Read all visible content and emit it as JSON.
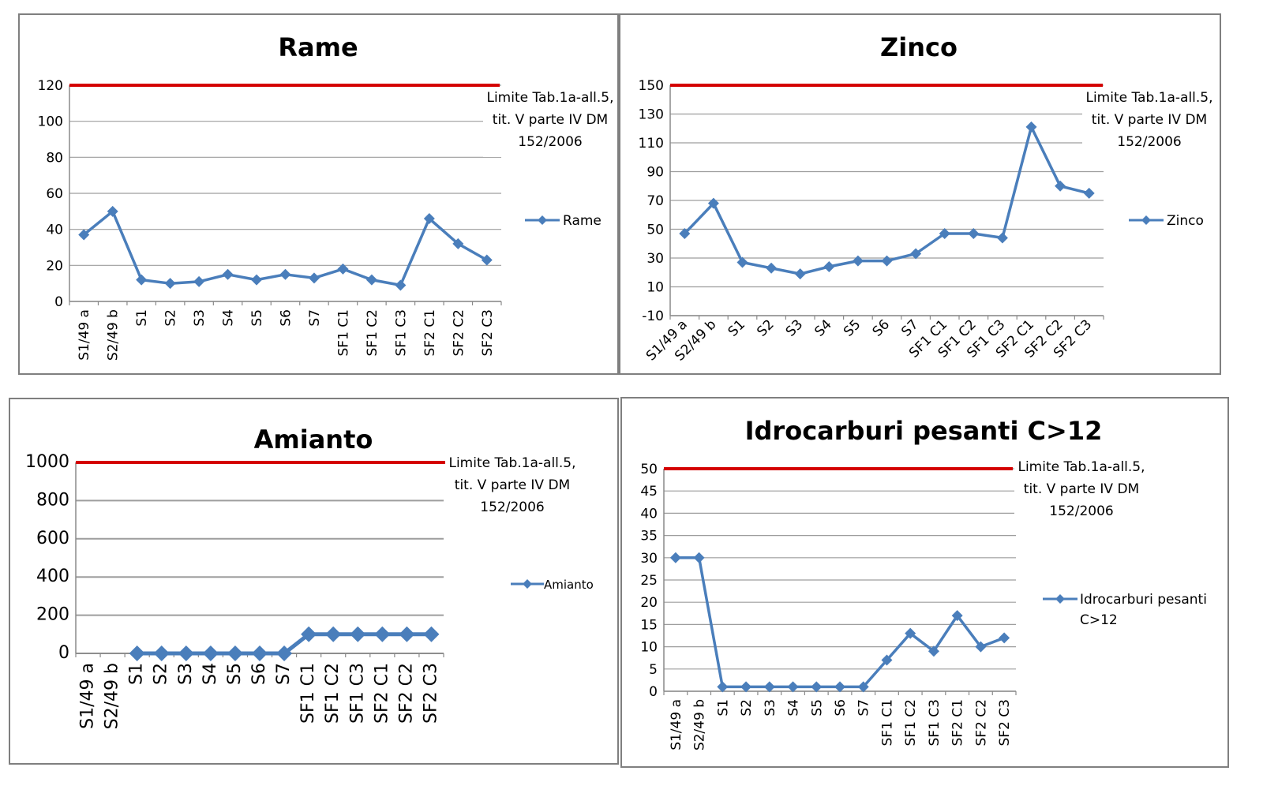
{
  "colors": {
    "series": "#4a7ebb",
    "limit": "#d40000",
    "grid": "#9d9d9d",
    "axis": "#8a8a8a"
  },
  "chart_data": [
    {
      "type": "line",
      "title": "Rame",
      "categories": [
        "S1/49 a",
        "S2/49 b",
        "S1",
        "S2",
        "S3",
        "S4",
        "S5",
        "S6",
        "S7",
        "SF1 C1",
        "SF1 C2",
        "SF1 C3",
        "SF2 C1",
        "SF2 C2",
        "SF2 C3"
      ],
      "series": [
        {
          "name": "Rame",
          "values": [
            37,
            50,
            12,
            10,
            11,
            15,
            12,
            15,
            13,
            18,
            12,
            9,
            46,
            32,
            23
          ]
        }
      ],
      "limit": {
        "value": 120,
        "label_lines": [
          "Limite Tab.1a-all.5,",
          "tit. V parte IV DM",
          "152/2006"
        ]
      },
      "ylim": [
        0,
        120
      ],
      "yticks": [
        0,
        20,
        40,
        60,
        80,
        100,
        120
      ],
      "grid": true,
      "legend": "right",
      "xlabel_rotation": "vertical"
    },
    {
      "type": "line",
      "title": "Zinco",
      "categories": [
        "S1/49 a",
        "S2/49 b",
        "S1",
        "S2",
        "S3",
        "S4",
        "S5",
        "S6",
        "S7",
        "SF1 C1",
        "SF1 C2",
        "SF1 C3",
        "SF2 C1",
        "SF2 C2",
        "SF2 C3"
      ],
      "series": [
        {
          "name": "Zinco",
          "values": [
            47,
            68,
            27,
            23,
            19,
            24,
            28,
            28,
            33,
            47,
            47,
            44,
            121,
            80,
            75
          ]
        }
      ],
      "limit": {
        "value": 150,
        "label_lines": [
          "Limite Tab.1a-all.5,",
          "tit. V parte IV DM",
          "152/2006"
        ]
      },
      "ylim": [
        -10,
        150
      ],
      "yticks": [
        -10,
        10,
        30,
        50,
        70,
        90,
        110,
        130,
        150
      ],
      "grid": true,
      "legend": "right",
      "xlabel_rotation": "diagonal"
    },
    {
      "type": "line",
      "title": "Amianto",
      "categories": [
        "S1/49 a",
        "S2/49 b",
        "S1",
        "S2",
        "S3",
        "S4",
        "S5",
        "S6",
        "S7",
        "SF1 C1",
        "SF1 C2",
        "SF1 C3",
        "SF2 C1",
        "SF2 C2",
        "SF2 C3"
      ],
      "series": [
        {
          "name": "Amianto",
          "values": [
            null,
            null,
            0,
            0,
            0,
            0,
            0,
            0,
            0,
            100,
            100,
            100,
            100,
            100,
            100
          ]
        }
      ],
      "limit": {
        "value": 1000,
        "label_lines": [
          "Limite Tab.1a-all.5,",
          "tit. V parte IV DM",
          "152/2006"
        ]
      },
      "ylim": [
        0,
        1000
      ],
      "yticks": [
        0,
        200,
        400,
        600,
        800,
        1000
      ],
      "grid": true,
      "legend": "right",
      "xlabel_rotation": "vertical"
    },
    {
      "type": "line",
      "title": "Idrocarburi pesanti C>12",
      "categories": [
        "S1/49 a",
        "S2/49 b",
        "S1",
        "S2",
        "S3",
        "S4",
        "S5",
        "S6",
        "S7",
        "SF1 C1",
        "SF1 C2",
        "SF1 C3",
        "SF2 C1",
        "SF2 C2",
        "SF2 C3"
      ],
      "series": [
        {
          "name": "Idrocarburi pesanti C>12",
          "values": [
            30,
            30,
            1,
            1,
            1,
            1,
            1,
            1,
            1,
            7,
            13,
            9,
            17,
            10,
            12
          ]
        }
      ],
      "limit": {
        "value": 50,
        "label_lines": [
          "Limite Tab.1a-all.5,",
          "tit. V parte IV DM",
          "152/2006"
        ]
      },
      "ylim": [
        0,
        50
      ],
      "yticks": [
        0,
        5,
        10,
        15,
        20,
        25,
        30,
        35,
        40,
        45,
        50
      ],
      "grid": true,
      "legend": "right",
      "xlabel_rotation": "vertical"
    }
  ]
}
